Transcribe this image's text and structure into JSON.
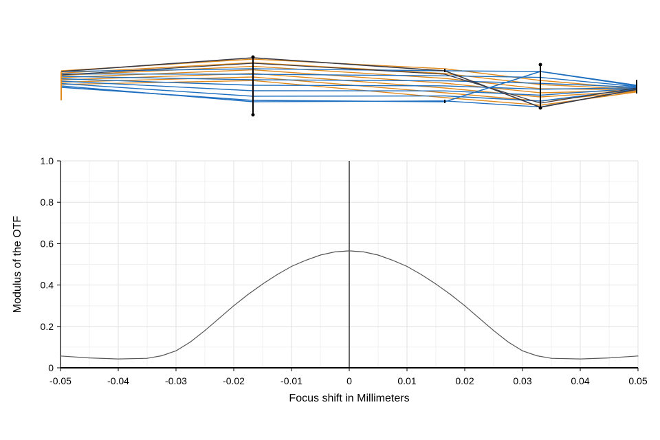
{
  "chart_data": {
    "type": "line",
    "title": "",
    "xlabel": "Focus shift in Millimeters",
    "ylabel": "Modulus of the OTF",
    "xlim": [
      -0.05,
      0.05
    ],
    "ylim": [
      0,
      1.0
    ],
    "x_ticks": [
      -0.05,
      -0.04,
      -0.03,
      -0.02,
      -0.01,
      0,
      0.01,
      0.02,
      0.03,
      0.04,
      0.05
    ],
    "x_tick_labels": [
      "-0.05",
      "-0.04",
      "-0.03",
      "-0.02",
      "-0.01",
      "0",
      "0.01",
      "0.02",
      "0.03",
      "0.04",
      "0.05"
    ],
    "y_ticks": [
      0,
      0.2,
      0.4,
      0.6,
      0.8,
      1.0
    ],
    "y_tick_labels": [
      "0",
      "0.2",
      "0.4",
      "0.6",
      "0.8",
      "1.0"
    ],
    "x_minor_ticks": [
      -0.045,
      -0.035,
      -0.025,
      -0.015,
      -0.005,
      0.005,
      0.015,
      0.025,
      0.035,
      0.045
    ],
    "y_minor_ticks": [
      0.1,
      0.3,
      0.5,
      0.7,
      0.9
    ],
    "grid": true,
    "vertical_reference_line_x": 0,
    "series": [
      {
        "color": "#555555",
        "x": [
          -0.05,
          -0.045,
          -0.04,
          -0.035,
          -0.0325,
          -0.03,
          -0.0275,
          -0.025,
          -0.0225,
          -0.02,
          -0.0175,
          -0.015,
          -0.0125,
          -0.01,
          -0.0075,
          -0.005,
          -0.0025,
          0,
          0.0025,
          0.005,
          0.0075,
          0.01,
          0.0125,
          0.015,
          0.0175,
          0.02,
          0.0225,
          0.025,
          0.0275,
          0.03,
          0.0325,
          0.035,
          0.04,
          0.045,
          0.05
        ],
        "y": [
          0.057,
          0.048,
          0.043,
          0.046,
          0.058,
          0.082,
          0.125,
          0.18,
          0.24,
          0.3,
          0.355,
          0.405,
          0.45,
          0.49,
          0.52,
          0.545,
          0.56,
          0.565,
          0.56,
          0.545,
          0.52,
          0.49,
          0.45,
          0.405,
          0.355,
          0.3,
          0.24,
          0.18,
          0.125,
          0.082,
          0.058,
          0.046,
          0.043,
          0.048,
          0.057
        ]
      }
    ]
  },
  "lens_layout": {
    "colors": {
      "blue": "#1f6fc0",
      "orange": "#e08a1e",
      "dark": "#3a3a44",
      "black": "#000000"
    }
  }
}
